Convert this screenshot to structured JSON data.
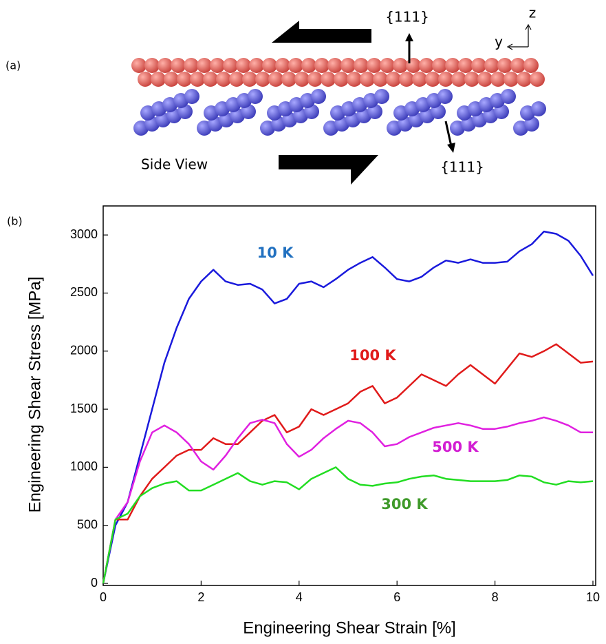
{
  "figure": {
    "panel_a": {
      "label": "(a)",
      "top_plane": "{111}",
      "bottom_plane": "{111}",
      "axis_z": "z",
      "axis_y": "y",
      "view": "Side View"
    },
    "panel_b_label": "(b)"
  },
  "chart_data": {
    "type": "line",
    "x_label": "Engineering Shear Strain [%]",
    "y_label": "Engineering Shear Stress [MPa]",
    "x": [
      0,
      0.25,
      0.5,
      0.75,
      1,
      1.25,
      1.5,
      1.75,
      2,
      2.25,
      2.5,
      2.75,
      3,
      3.25,
      3.5,
      3.75,
      4,
      4.25,
      4.5,
      4.75,
      5,
      5.25,
      5.5,
      5.75,
      6,
      6.25,
      6.5,
      6.75,
      7,
      7.25,
      7.5,
      7.75,
      8,
      8.25,
      8.5,
      8.75,
      9,
      9.25,
      9.5,
      9.75,
      10
    ],
    "series": [
      {
        "name": "10 K",
        "color": "#1a1adc",
        "values": [
          0,
          500,
          700,
          1100,
          1500,
          1900,
          2200,
          2450,
          2600,
          2700,
          2600,
          2570,
          2580,
          2530,
          2410,
          2450,
          2580,
          2600,
          2550,
          2620,
          2700,
          2760,
          2810,
          2720,
          2620,
          2600,
          2640,
          2720,
          2780,
          2760,
          2790,
          2760,
          2760,
          2770,
          2860,
          2920,
          3030,
          3010,
          2950,
          2820,
          2650
        ]
      },
      {
        "name": "100 K",
        "color": "#e01a1a",
        "values": [
          0,
          550,
          550,
          750,
          900,
          1000,
          1100,
          1150,
          1150,
          1250,
          1200,
          1200,
          1300,
          1400,
          1450,
          1300,
          1350,
          1500,
          1450,
          1500,
          1550,
          1650,
          1700,
          1550,
          1600,
          1700,
          1800,
          1750,
          1700,
          1800,
          1880,
          1800,
          1720,
          1850,
          1980,
          1950,
          2000,
          2060,
          1980,
          1900,
          1910
        ]
      },
      {
        "name": "500 K",
        "color": "#e020e0",
        "values": [
          0,
          550,
          700,
          1050,
          1300,
          1360,
          1300,
          1200,
          1050,
          980,
          1100,
          1250,
          1380,
          1410,
          1380,
          1200,
          1090,
          1150,
          1250,
          1330,
          1400,
          1380,
          1300,
          1180,
          1200,
          1260,
          1300,
          1340,
          1360,
          1380,
          1360,
          1330,
          1330,
          1350,
          1380,
          1400,
          1430,
          1400,
          1360,
          1300,
          1300
        ]
      },
      {
        "name": "300 K",
        "color": "#22dd22",
        "values": [
          0,
          550,
          600,
          750,
          820,
          860,
          880,
          800,
          800,
          850,
          900,
          950,
          880,
          850,
          880,
          870,
          810,
          900,
          950,
          1000,
          900,
          850,
          840,
          860,
          870,
          900,
          920,
          930,
          900,
          890,
          880,
          880,
          880,
          890,
          930,
          920,
          870,
          850,
          880,
          870,
          880
        ]
      }
    ],
    "xlim": [
      0,
      10
    ],
    "xticks": [
      0,
      2,
      4,
      6,
      8,
      10
    ],
    "ylim": [
      0,
      3250
    ],
    "yticks": [
      0,
      500,
      1000,
      1500,
      2000,
      2500,
      3000
    ],
    "grid": false
  }
}
